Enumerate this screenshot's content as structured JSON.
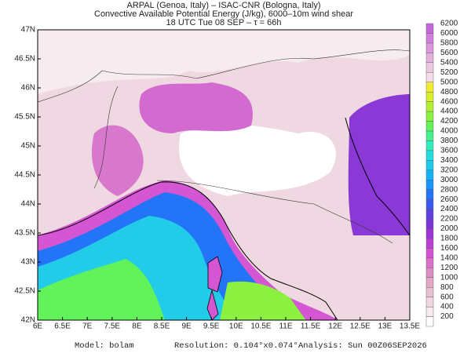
{
  "header": {
    "lines": [
      "ARPAL (Genoa, Italy)  –  ISAC-CNR (Bologna, Italy)",
      "Convective Available Potential Energy (J/kg), 6000–10m wind shear",
      "18 UTC Tue 08 SEP  –  τ = 66h"
    ]
  },
  "map": {
    "lat_labels": [
      "47N",
      "46.5N",
      "46N",
      "45.5N",
      "45N",
      "44.5N",
      "44N",
      "43.5N",
      "43N",
      "42.5N",
      "42N"
    ],
    "lon_labels": [
      "6E",
      "6.5E",
      "7E",
      "7.5E",
      "8E",
      "8.5E",
      "9E",
      "9.5E",
      "10E",
      "10.5E",
      "11E",
      "11.5E",
      "12E",
      "12.5E",
      "13E",
      "13.5E"
    ]
  },
  "colorbar": {
    "ticks": [
      200,
      400,
      600,
      800,
      1000,
      1200,
      1400,
      1600,
      1800,
      2000,
      2200,
      2400,
      2600,
      2800,
      3000,
      3200,
      3400,
      3600,
      3800,
      4000,
      4200,
      4400,
      4600,
      4800,
      5000,
      5200,
      5400,
      5600,
      5800,
      6000,
      6200
    ],
    "colors": [
      "#ffffff",
      "#f6eaee",
      "#efd6e0",
      "#e8c0d2",
      "#e2a8c6",
      "#de8ec6",
      "#dc70cc",
      "#d452d2",
      "#bc3ed4",
      "#9c34d6",
      "#7c34d8",
      "#5c40e2",
      "#3c58ee",
      "#2474f8",
      "#1894fa",
      "#14b2f4",
      "#1ccaec",
      "#22dede",
      "#30eebc",
      "#42f28c",
      "#62f25a",
      "#8cf040",
      "#b4f032",
      "#d8f02a",
      "#f0ec34",
      "#f4dce8",
      "#ecc8e0",
      "#e4b0dc",
      "#dc98dc",
      "#d080dc",
      "#c468dc"
    ]
  },
  "footer": {
    "model": "Model: bolam",
    "resolution": "Resolution: 0.104°x0.074°",
    "analysis": "Analysis: Sun 00Z06SEP2026"
  }
}
